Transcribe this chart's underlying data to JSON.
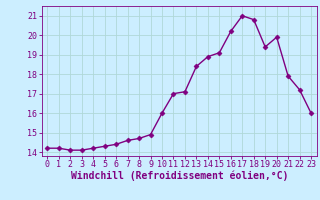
{
  "x": [
    0,
    1,
    2,
    3,
    4,
    5,
    6,
    7,
    8,
    9,
    10,
    11,
    12,
    13,
    14,
    15,
    16,
    17,
    18,
    19,
    20,
    21,
    22,
    23
  ],
  "y": [
    14.2,
    14.2,
    14.1,
    14.1,
    14.2,
    14.3,
    14.4,
    14.6,
    14.7,
    14.9,
    16.0,
    17.0,
    17.1,
    18.4,
    18.9,
    19.1,
    20.2,
    21.0,
    20.8,
    19.4,
    19.9,
    17.9,
    17.2,
    16.0
  ],
  "color": "#800080",
  "bg_color": "#cceeff",
  "grid_color": "#b0d8d8",
  "xlabel": "Windchill (Refroidissement éolien,°C)",
  "xlabel_color": "#800080",
  "tick_color": "#800080",
  "ylim": [
    13.8,
    21.5
  ],
  "xlim": [
    -0.5,
    23.5
  ],
  "yticks": [
    14,
    15,
    16,
    17,
    18,
    19,
    20,
    21
  ],
  "xticks": [
    0,
    1,
    2,
    3,
    4,
    5,
    6,
    7,
    8,
    9,
    10,
    11,
    12,
    13,
    14,
    15,
    16,
    17,
    18,
    19,
    20,
    21,
    22,
    23
  ],
  "marker": "D",
  "marker_size": 2.5,
  "line_width": 1.0,
  "tick_fontsize": 6.0,
  "xlabel_fontsize": 7.0
}
